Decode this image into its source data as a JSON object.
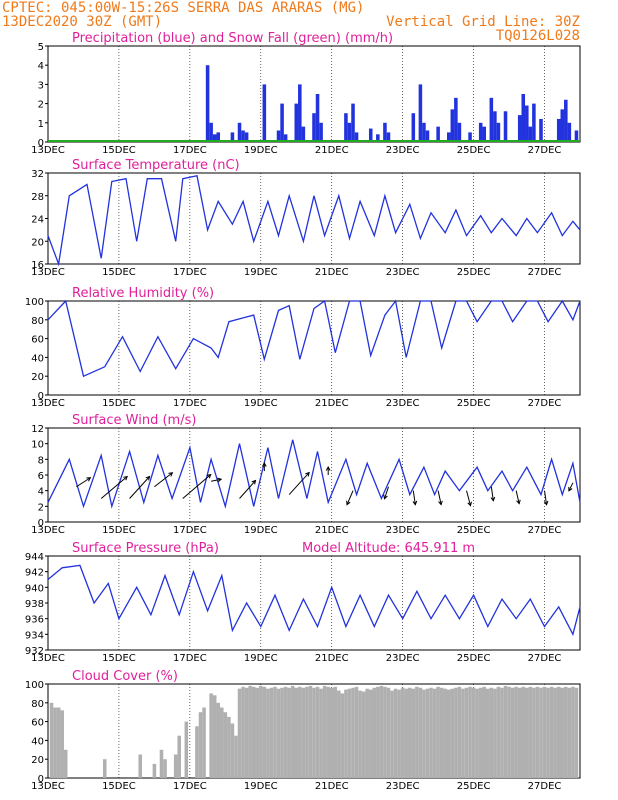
{
  "header": {
    "line1": "CPTEC:  045:00W-15:26S  SERRA DAS ARARAS (MG)",
    "line2": "13DEC2020 30Z (GMT)",
    "grid_note": "Vertical Grid Line: 30Z",
    "code": "TQ0126L028"
  },
  "colors": {
    "header": "#f07a1a",
    "panel_title": "#e0209a",
    "line": "#2233dd",
    "precip_bar": "#2233dd",
    "snow": "#22aa22",
    "cloud_bar": "#b0b0b0",
    "arrow": "#000000"
  },
  "chart_data": [
    {
      "type": "bar",
      "title": "Precipitation (blue) and Snow Fall (green) (mm/h)",
      "ylim": [
        0,
        5
      ],
      "yticks": [
        0,
        1,
        2,
        3,
        4,
        5
      ],
      "xlabels": [
        "13DEC",
        "15DEC",
        "17DEC",
        "19DEC",
        "21DEC",
        "23DEC",
        "25DEC",
        "27DEC"
      ],
      "extra_label": "",
      "x": [
        4.5,
        4.6,
        4.7,
        4.8,
        5.2,
        5.4,
        5.5,
        5.6,
        6.1,
        6.5,
        6.6,
        6.7,
        7.0,
        7.1,
        7.2,
        7.5,
        7.6,
        7.7,
        8.4,
        8.5,
        8.6,
        8.7,
        9.1,
        9.3,
        9.5,
        9.6,
        10.3,
        10.5,
        10.6,
        10.7,
        11.0,
        11.3,
        11.4,
        11.5,
        11.6,
        11.9,
        12.2,
        12.3,
        12.5,
        12.6,
        12.7,
        12.9,
        13.3,
        13.4,
        13.5,
        13.6,
        13.7,
        13.9,
        14.4,
        14.5,
        14.6,
        14.7,
        14.9
      ],
      "values": [
        4.0,
        1.0,
        0.4,
        0.5,
        0.5,
        1.0,
        0.6,
        0.5,
        3.0,
        0.6,
        2.0,
        0.4,
        2.0,
        3.0,
        0.8,
        1.5,
        2.5,
        1.0,
        1.5,
        1.0,
        2.0,
        0.5,
        0.7,
        0.4,
        1.0,
        0.5,
        1.5,
        3.0,
        1.0,
        0.6,
        0.8,
        0.5,
        1.7,
        2.3,
        1.0,
        0.5,
        1.0,
        0.8,
        2.3,
        1.6,
        1.0,
        1.6,
        1.4,
        2.5,
        1.9,
        0.8,
        2.0,
        1.2,
        1.2,
        1.7,
        2.2,
        1.0,
        0.6
      ],
      "snow": 0
    },
    {
      "type": "line",
      "title": "Surface Temperature (nC)",
      "ylim": [
        16,
        32
      ],
      "yticks": [
        16,
        20,
        24,
        28,
        32
      ],
      "xlabels": [
        "13DEC",
        "15DEC",
        "17DEC",
        "19DEC",
        "21DEC",
        "23DEC",
        "25DEC",
        "27DEC"
      ],
      "extra_label": "",
      "x": [
        0,
        0.3,
        0.6,
        1.1,
        1.5,
        1.8,
        2.2,
        2.5,
        2.8,
        3.2,
        3.6,
        3.8,
        4.2,
        4.5,
        4.8,
        5.2,
        5.5,
        5.8,
        6.2,
        6.5,
        6.8,
        7.2,
        7.5,
        7.8,
        8.2,
        8.5,
        8.8,
        9.2,
        9.5,
        9.8,
        10.2,
        10.5,
        10.8,
        11.2,
        11.5,
        11.8,
        12.2,
        12.5,
        12.8,
        13.2,
        13.5,
        13.8,
        14.2,
        14.5,
        14.8,
        15
      ],
      "values": [
        21,
        16,
        28,
        30,
        17,
        30.5,
        31,
        20,
        31,
        31,
        20,
        31,
        31.5,
        22,
        27,
        23,
        27,
        20,
        27,
        21,
        28,
        20,
        28,
        21,
        28,
        20.5,
        27,
        21,
        28,
        21.5,
        26.5,
        20.5,
        25,
        21.5,
        25.5,
        21,
        24.5,
        21.5,
        24,
        21,
        24,
        21.5,
        25,
        21,
        23.5,
        22
      ]
    },
    {
      "type": "line",
      "title": "Relative Humidity (%)",
      "ylim": [
        0,
        100
      ],
      "yticks": [
        0,
        20,
        40,
        60,
        80,
        100
      ],
      "xlabels": [
        "13DEC",
        "15DEC",
        "17DEC",
        "19DEC",
        "21DEC",
        "23DEC",
        "25DEC",
        "27DEC"
      ],
      "extra_label": "",
      "x": [
        0,
        0.5,
        1.0,
        1.6,
        2.1,
        2.6,
        3.1,
        3.6,
        4.1,
        4.6,
        4.8,
        5.1,
        5.5,
        5.8,
        6.1,
        6.5,
        6.8,
        7.1,
        7.5,
        7.8,
        8.1,
        8.5,
        8.8,
        9.1,
        9.5,
        9.8,
        10.1,
        10.5,
        10.8,
        11.1,
        11.5,
        11.8,
        12.1,
        12.5,
        12.8,
        13.1,
        13.5,
        13.8,
        14.1,
        14.5,
        14.8,
        15
      ],
      "values": [
        80,
        100,
        20,
        30,
        62,
        25,
        62,
        28,
        60,
        50,
        40,
        78,
        82,
        85,
        38,
        90,
        95,
        38,
        92,
        100,
        45,
        100,
        100,
        42,
        85,
        100,
        40,
        100,
        100,
        50,
        100,
        100,
        78,
        100,
        100,
        78,
        100,
        100,
        78,
        100,
        80,
        100
      ]
    },
    {
      "type": "line",
      "title": "Surface Wind (m/s)",
      "ylim": [
        0,
        12
      ],
      "yticks": [
        0,
        2,
        4,
        6,
        8,
        10,
        12
      ],
      "xlabels": [
        "13DEC",
        "15DEC",
        "17DEC",
        "19DEC",
        "21DEC",
        "23DEC",
        "25DEC",
        "27DEC"
      ],
      "extra_label": "",
      "x": [
        0,
        0.6,
        1.0,
        1.5,
        1.8,
        2.3,
        2.7,
        3.1,
        3.5,
        4.0,
        4.3,
        4.6,
        5.0,
        5.4,
        5.8,
        6.2,
        6.5,
        6.9,
        7.3,
        7.6,
        7.9,
        8.4,
        8.7,
        9.0,
        9.4,
        9.9,
        10.2,
        10.6,
        10.9,
        11.2,
        11.6,
        12.1,
        12.4,
        12.8,
        13.1,
        13.5,
        13.9,
        14.2,
        14.5,
        14.8,
        15
      ],
      "values": [
        2.5,
        8,
        2,
        8.5,
        2,
        9,
        2.5,
        8.5,
        3,
        9.5,
        2.5,
        8,
        2,
        10,
        2,
        9.5,
        3,
        10.5,
        3,
        9,
        2.5,
        8,
        3.5,
        7.5,
        3,
        8,
        3.5,
        7,
        3.5,
        6.5,
        4,
        7,
        4,
        6.5,
        4,
        7,
        3.5,
        8,
        3.5,
        7.5,
        2.5
      ],
      "arrows": [
        {
          "x": 0.8,
          "y": 4.5,
          "dx": 14,
          "dy": -9
        },
        {
          "x": 1.5,
          "y": 3.0,
          "dx": 26,
          "dy": -22
        },
        {
          "x": 2.3,
          "y": 3.0,
          "dx": 20,
          "dy": -22
        },
        {
          "x": 3.0,
          "y": 4.5,
          "dx": 18,
          "dy": -14
        },
        {
          "x": 3.8,
          "y": 3.0,
          "dx": 28,
          "dy": -24
        },
        {
          "x": 4.6,
          "y": 5.2,
          "dx": 10,
          "dy": -2
        },
        {
          "x": 5.4,
          "y": 3.0,
          "dx": 16,
          "dy": -18
        },
        {
          "x": 6.1,
          "y": 6.5,
          "dx": 0,
          "dy": -8
        },
        {
          "x": 6.8,
          "y": 3.5,
          "dx": 20,
          "dy": -22
        },
        {
          "x": 7.9,
          "y": 6.0,
          "dx": 0,
          "dy": -8
        },
        {
          "x": 8.6,
          "y": 4.0,
          "dx": -6,
          "dy": 14
        },
        {
          "x": 9.6,
          "y": 4.5,
          "dx": -4,
          "dy": 12
        },
        {
          "x": 10.3,
          "y": 4.0,
          "dx": 2,
          "dy": 14
        },
        {
          "x": 11.0,
          "y": 4.0,
          "dx": 3,
          "dy": 14
        },
        {
          "x": 11.8,
          "y": 4.0,
          "dx": 4,
          "dy": 15
        },
        {
          "x": 12.5,
          "y": 4.5,
          "dx": 2,
          "dy": 14
        },
        {
          "x": 13.2,
          "y": 4.0,
          "dx": 3,
          "dy": 13
        },
        {
          "x": 14.0,
          "y": 4.0,
          "dx": 2,
          "dy": 14
        },
        {
          "x": 14.8,
          "y": 5.0,
          "dx": -4,
          "dy": 8
        }
      ]
    },
    {
      "type": "line",
      "title": "Surface Pressure (hPa)",
      "ylim": [
        932,
        944
      ],
      "yticks": [
        932,
        934,
        936,
        938,
        940,
        942,
        944
      ],
      "xlabels": [
        "13DEC",
        "15DEC",
        "17DEC",
        "19DEC",
        "21DEC",
        "23DEC",
        "25DEC",
        "27DEC"
      ],
      "extra_label": "Model Altitude: 645.911 m",
      "x": [
        0,
        0.4,
        0.9,
        1.3,
        1.7,
        2.0,
        2.5,
        2.9,
        3.3,
        3.7,
        4.1,
        4.5,
        4.9,
        5.2,
        5.6,
        6.0,
        6.4,
        6.8,
        7.2,
        7.6,
        8.0,
        8.4,
        8.8,
        9.2,
        9.6,
        10.0,
        10.4,
        10.8,
        11.2,
        11.6,
        12.0,
        12.4,
        12.8,
        13.2,
        13.6,
        14.0,
        14.4,
        14.8,
        15
      ],
      "values": [
        941,
        942.5,
        942.8,
        938,
        940.5,
        936,
        940,
        936.5,
        941.5,
        936.5,
        942,
        937,
        941.5,
        934.5,
        938,
        935,
        939,
        934.5,
        938.5,
        935,
        940,
        935,
        939,
        935,
        939,
        936,
        939.5,
        936,
        939,
        936,
        939,
        935,
        938.5,
        936,
        938.5,
        935,
        937.5,
        934,
        937.5
      ]
    },
    {
      "type": "bar",
      "title": "Cloud Cover (%)",
      "ylim": [
        0,
        100
      ],
      "yticks": [
        0,
        20,
        40,
        60,
        80,
        100
      ],
      "xlabels": [
        "13DEC",
        "15DEC",
        "17DEC",
        "19DEC",
        "21DEC",
        "23DEC",
        "25DEC",
        "27DEC"
      ],
      "extra_label": "",
      "x": [
        0.1,
        0.2,
        0.3,
        0.4,
        0.5,
        1.6,
        2.6,
        3.0,
        3.2,
        3.3,
        3.6,
        3.7,
        3.9,
        4.2,
        4.3,
        4.4,
        4.6,
        4.7,
        4.8,
        4.9,
        5.0,
        5.1,
        5.2,
        5.3,
        5.4,
        5.5,
        5.6,
        5.7,
        5.8,
        5.9,
        6.0,
        6.1,
        6.2,
        6.3,
        6.4,
        6.5,
        6.6,
        6.7,
        6.8,
        6.9,
        7.0,
        7.1,
        7.2,
        7.3,
        7.4,
        7.5,
        7.6,
        7.7,
        7.8,
        7.9,
        8.0,
        8.1,
        8.2,
        8.3,
        8.4,
        8.5,
        8.6,
        8.7,
        8.8,
        8.9,
        9.0,
        9.1,
        9.2,
        9.3,
        9.4,
        9.5,
        9.6,
        9.7,
        9.8,
        9.9,
        10.0,
        10.1,
        10.2,
        10.3,
        10.4,
        10.5,
        10.6,
        10.7,
        10.8,
        10.9,
        11.0,
        11.1,
        11.2,
        11.3,
        11.4,
        11.5,
        11.6,
        11.7,
        11.8,
        11.9,
        12.0,
        12.1,
        12.2,
        12.3,
        12.4,
        12.5,
        12.6,
        12.7,
        12.8,
        12.9,
        13.0,
        13.1,
        13.2,
        13.3,
        13.4,
        13.5,
        13.6,
        13.7,
        13.8,
        13.9,
        14.0,
        14.1,
        14.2,
        14.3,
        14.4,
        14.5,
        14.6,
        14.7,
        14.8,
        14.9
      ],
      "values": [
        80,
        75,
        75,
        72,
        30,
        20,
        25,
        15,
        30,
        20,
        25,
        45,
        60,
        55,
        70,
        75,
        90,
        88,
        80,
        75,
        70,
        65,
        58,
        45,
        95,
        97,
        96,
        98,
        97,
        96,
        98,
        97,
        95,
        96,
        97,
        95,
        96,
        97,
        96,
        98,
        96,
        97,
        96,
        97,
        98,
        96,
        97,
        95,
        98,
        97,
        96,
        97,
        93,
        90,
        94,
        95,
        96,
        97,
        93,
        92,
        95,
        94,
        96,
        97,
        98,
        97,
        96,
        93,
        95,
        94,
        96,
        95,
        96,
        95,
        97,
        96,
        94,
        95,
        96,
        95,
        97,
        96,
        95,
        94,
        95,
        96,
        97,
        95,
        96,
        97,
        96,
        95,
        96,
        97,
        95,
        96,
        95,
        97,
        96,
        98,
        97,
        96,
        97,
        96,
        97,
        96,
        97,
        96,
        97,
        96,
        97,
        96,
        97,
        96,
        97,
        96,
        97,
        96,
        97,
        96
      ]
    }
  ]
}
